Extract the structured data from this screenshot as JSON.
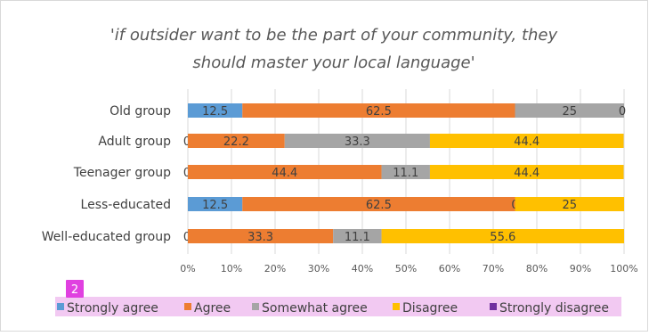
{
  "chart_data": {
    "type": "bar",
    "orientation": "horizontal",
    "stacked": "percent",
    "title_lines": [
      "'if outsider want to be the part of your community, they",
      "should master your local language'"
    ],
    "categories": [
      "Old group",
      "Adult group",
      "Teenager group",
      "Less-educated",
      "Well-educated group"
    ],
    "series": [
      {
        "name": "Strongly agree",
        "color": "#5B9BD5",
        "values": [
          12.5,
          0,
          0,
          12.5,
          0
        ],
        "labels": [
          "12.5",
          "0",
          "0",
          "12.5",
          "0"
        ]
      },
      {
        "name": "Agree",
        "color": "#ED7D31",
        "values": [
          62.5,
          22.2,
          44.4,
          62.5,
          33.3
        ],
        "labels": [
          "62.5",
          "22.2",
          "44.4",
          "62.5",
          "33.3"
        ]
      },
      {
        "name": "Somewhat agree",
        "color": "#A5A5A5",
        "values": [
          25,
          33.3,
          11.1,
          0,
          11.1
        ],
        "labels": [
          "25",
          "33.3",
          "11.1",
          "0",
          "11.1"
        ]
      },
      {
        "name": "Disagree",
        "color": "#FFC000",
        "values": [
          0,
          44.4,
          44.4,
          25,
          55.6
        ],
        "labels": [
          "0",
          "44.4",
          "44.4",
          "25",
          "55.6"
        ]
      },
      {
        "name": "Strongly disagree",
        "color": "#7030A0",
        "values": [
          0,
          0,
          0,
          0,
          0
        ],
        "labels": [
          "",
          "",
          "",
          "",
          ""
        ]
      }
    ],
    "xlim": [
      0,
      100
    ],
    "xticks": [
      "0%",
      "10%",
      "20%",
      "30%",
      "40%",
      "50%",
      "60%",
      "70%",
      "80%",
      "90%",
      "100%"
    ],
    "grid": true,
    "legend_position": "bottom",
    "legend_badge": "2",
    "legend_highlight_color": "#F2C9F2",
    "badge_color": "#E040E0"
  }
}
